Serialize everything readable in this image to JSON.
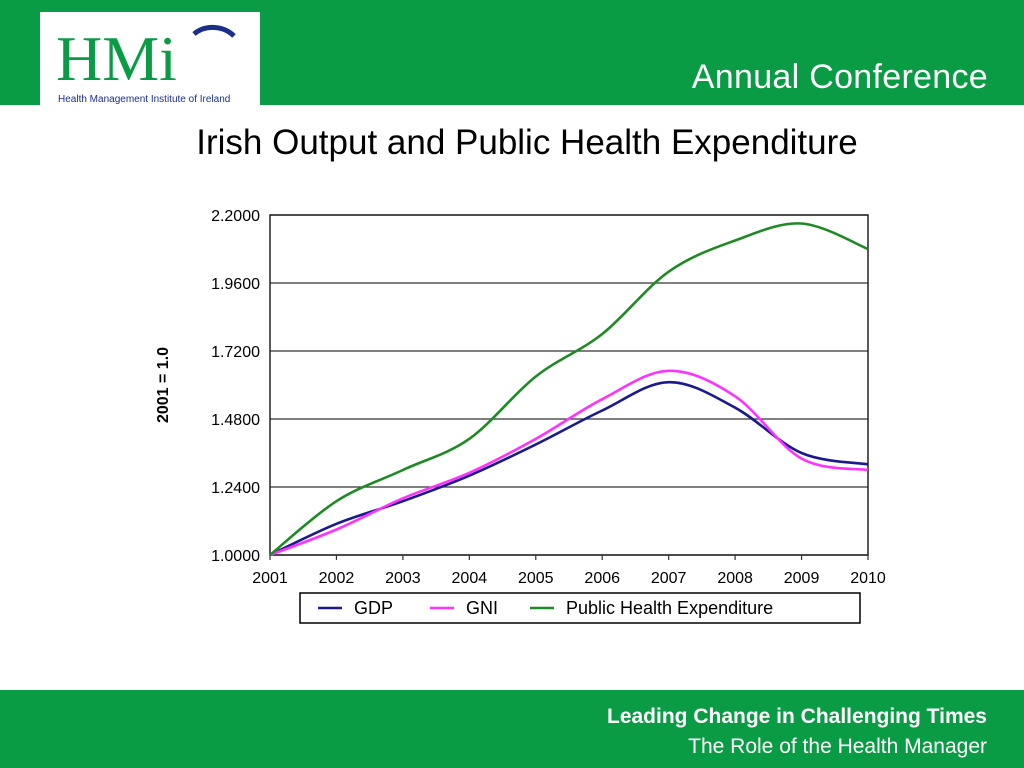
{
  "header": {
    "logo_text": "HMi",
    "logo_subtitle": "Health Management Institute of Ireland",
    "title": "Annual Conference"
  },
  "slide": {
    "title": "Irish Output and Public Health Expenditure"
  },
  "footer": {
    "line1": "Leading Change in Challenging Times",
    "line2": "The Role of the Health Manager"
  },
  "colors": {
    "brand_green": "#0a9b45",
    "logo_blue": "#1b2f8a"
  },
  "chart_data": {
    "type": "line",
    "title": "",
    "ylabel": "2001 = 1.0",
    "xlabel": "",
    "ylim": [
      1.0,
      2.2
    ],
    "y_ticks": [
      "1.0000",
      "1.2400",
      "1.4800",
      "1.7200",
      "1.9600",
      "2.2000"
    ],
    "x": [
      "2001",
      "2002",
      "2003",
      "2004",
      "2005",
      "2006",
      "2007",
      "2008",
      "2009",
      "2010"
    ],
    "grid": true,
    "legend_position": "bottom",
    "series": [
      {
        "name": "GDP",
        "color": "#1a1a8c",
        "values": [
          1.0,
          1.11,
          1.19,
          1.28,
          1.39,
          1.51,
          1.61,
          1.52,
          1.36,
          1.32
        ]
      },
      {
        "name": "GNI",
        "color": "#ff33ff",
        "values": [
          1.0,
          1.09,
          1.2,
          1.29,
          1.41,
          1.55,
          1.65,
          1.56,
          1.34,
          1.3
        ]
      },
      {
        "name": "Public Health Expenditure",
        "color": "#1e8a24",
        "values": [
          1.0,
          1.19,
          1.3,
          1.41,
          1.63,
          1.78,
          2.0,
          2.11,
          2.17,
          2.08
        ]
      }
    ]
  }
}
